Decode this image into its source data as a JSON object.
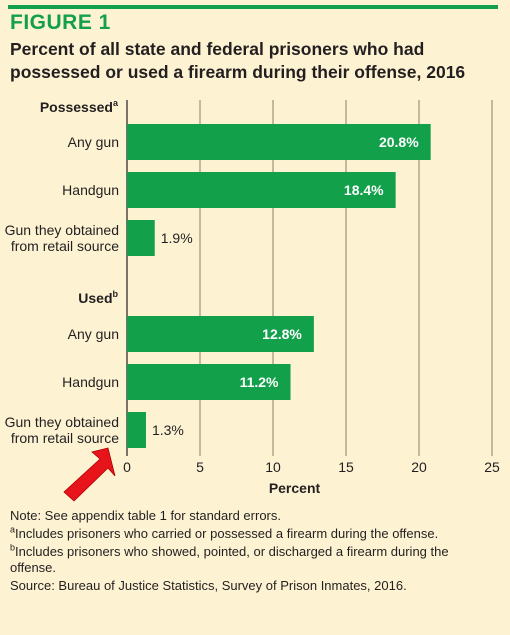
{
  "figure_label": "FIGURE 1",
  "title": "Percent of all state and federal prisoners who had possessed or used a firearm during their offense, 2016",
  "chart_data": {
    "type": "bar",
    "orientation": "horizontal",
    "groups": [
      {
        "name": "Possessed",
        "footnote_mark": "a",
        "categories": [
          "Any gun",
          "Handgun",
          "Gun they obtained from retail source"
        ],
        "values": [
          20.8,
          18.4,
          1.9
        ],
        "value_labels": [
          "20.8%",
          "18.4%",
          "1.9%"
        ]
      },
      {
        "name": "Used",
        "footnote_mark": "b",
        "categories": [
          "Any gun",
          "Handgun",
          "Gun they obtained from retail source"
        ],
        "values": [
          12.8,
          11.2,
          1.3
        ],
        "value_labels": [
          "12.8%",
          "11.2%",
          "1.3%"
        ]
      }
    ],
    "xlabel": "Percent",
    "xlim": [
      0,
      25
    ],
    "xticks": [
      0,
      5,
      10,
      15,
      20,
      25
    ],
    "grid": true,
    "bar_color": "#12a04a",
    "annotation": "red arrow pointing to Used: Gun they obtained from retail source"
  },
  "notes": {
    "note": "Note: See appendix table 1 for standard errors.",
    "footnote_a_mark": "a",
    "footnote_a": "Includes prisoners who carried or possessed a firearm during the offense.",
    "footnote_b_mark": "b",
    "footnote_b": "Includes prisoners who showed, pointed, or discharged a firearm during the offense.",
    "source": "Source: Bureau of Justice Statistics, Survey of Prison Inmates, 2016."
  },
  "colors": {
    "accent": "#12a04a",
    "background": "#fdf3d3",
    "arrow": "#e8141b"
  }
}
